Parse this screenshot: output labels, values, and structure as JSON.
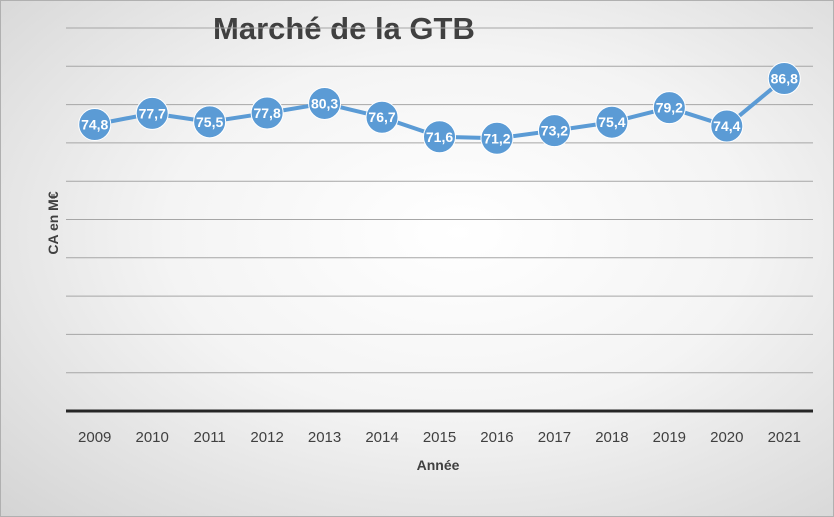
{
  "chart_data": {
    "type": "line",
    "title": "Marché de la GTB",
    "xlabel": "Année",
    "ylabel": "CA en M€",
    "categories": [
      "2009",
      "2010",
      "2011",
      "2012",
      "2013",
      "2014",
      "2015",
      "2016",
      "2017",
      "2018",
      "2019",
      "2020",
      "2021"
    ],
    "series": [
      {
        "values": [
          74.8,
          77.7,
          75.5,
          77.8,
          80.3,
          76.7,
          71.6,
          71.2,
          73.2,
          75.4,
          79.2,
          74.4,
          86.8
        ],
        "labels": [
          "74,8",
          "77,7",
          "75,5",
          "77,8",
          "80,3",
          "76,7",
          "71,6",
          "71,2",
          "73,2",
          "75,4",
          "79,2",
          "74,4",
          "86,8"
        ]
      }
    ],
    "ylim": [
      0,
      100
    ],
    "grid": true,
    "legend": "none",
    "colors": {
      "line": "#5b9bd5",
      "marker": "#5b9bd5",
      "label": "#ffffff"
    }
  }
}
